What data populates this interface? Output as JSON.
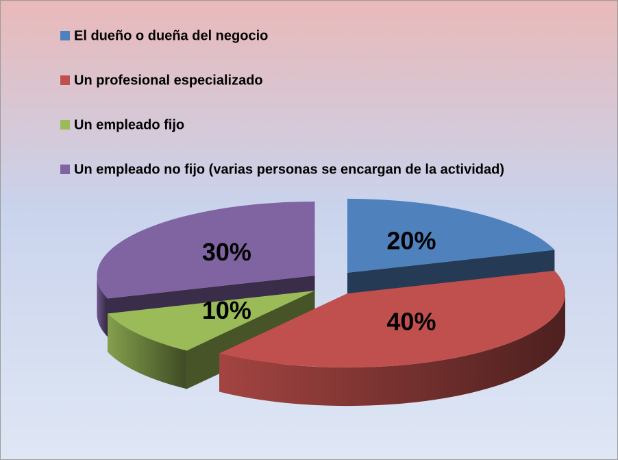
{
  "chart_data": {
    "type": "pie",
    "categories": [
      "El dueño o dueña del negocio",
      "Un profesional especializado",
      "Un empleado fijo",
      "Un empleado no fijo (varias personas se encargan de la actividad)"
    ],
    "values": [
      20,
      40,
      10,
      30
    ],
    "value_labels": [
      "20%",
      "40%",
      "10%",
      "30%"
    ],
    "colors": [
      "#4f81bd",
      "#c0504d",
      "#9bbb59",
      "#8064a2"
    ],
    "legend": "top-left"
  }
}
